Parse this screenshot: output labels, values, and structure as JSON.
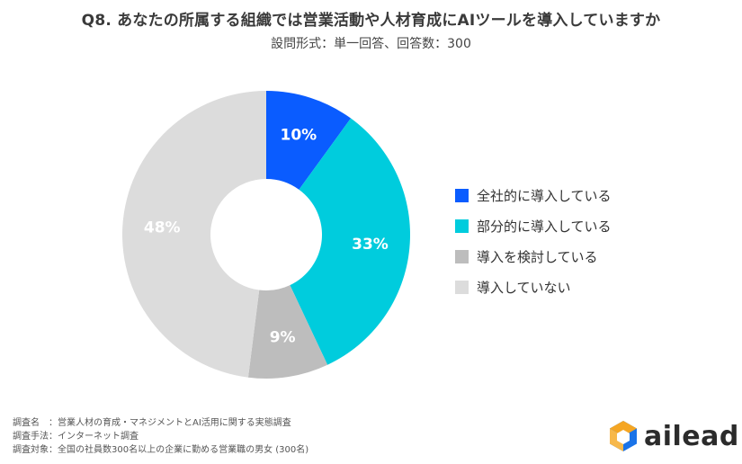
{
  "title": "Q8. あなたの所属する組織では営業活動や人材育成にAIツールを導入していますか",
  "subtitle": "設問形式：単一回答、回答数：300",
  "chart_data": {
    "type": "pie",
    "donut": true,
    "categories": [
      "全社的に導入している",
      "部分的に導入している",
      "導入を検討している",
      "導入していない"
    ],
    "values": [
      10,
      33,
      9,
      48
    ],
    "value_labels": [
      "10%",
      "33%",
      "9%",
      "48%"
    ],
    "colors": [
      "#0a5cff",
      "#00ccdd",
      "#bdbdbd",
      "#dcdcdc"
    ],
    "legend_position": "right",
    "start_angle": "top",
    "direction": "clockwise"
  },
  "footer": {
    "line1": "調査名　：営業人材の育成・マネジメントとAI活用に関する実態調査",
    "line2": "調査手法：インターネット調査",
    "line3": "調査対象：全国の社員数300名以上の企業に勤める営業職の男女 (300名)"
  },
  "logo": {
    "text": "ailead",
    "colors": [
      "#f5a623",
      "#1a73e8"
    ]
  }
}
